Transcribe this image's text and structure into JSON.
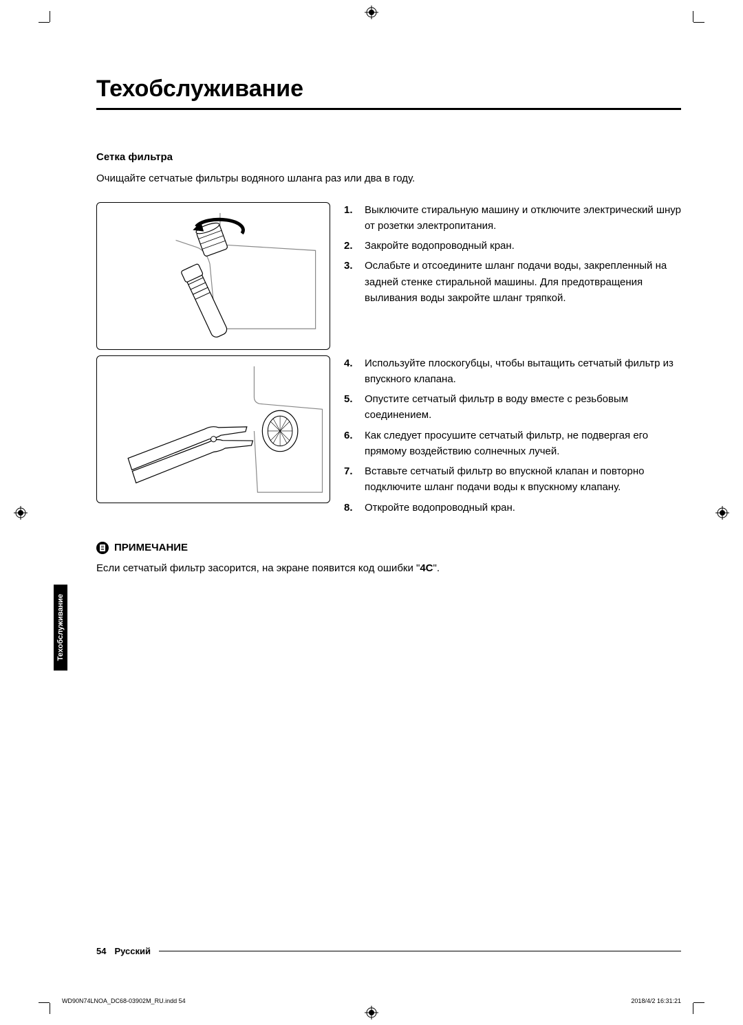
{
  "page": {
    "title": "Техобслуживание",
    "subheading": "Сетка фильтра",
    "intro": "Очищайте сетчатые фильтры водяного шланга раз или два в году.",
    "sideTab": "Техобслуживание",
    "pageNumber": "54",
    "language": "Русский"
  },
  "steps_block1": [
    {
      "num": "1.",
      "text": "Выключите стиральную машину и отключите электрический шнур от розетки электропитания."
    },
    {
      "num": "2.",
      "text": "Закройте водопроводный кран."
    },
    {
      "num": "3.",
      "text": "Ослабьте и отсоедините шланг подачи воды, закрепленный на задней стенке стиральной машины. Для предотвращения выливания воды закройте шланг тряпкой."
    }
  ],
  "steps_block2": [
    {
      "num": "4.",
      "text": "Используйте плоскогубцы, чтобы вытащить сетчатый фильтр из впускного клапана."
    },
    {
      "num": "5.",
      "text": "Опустите сетчатый фильтр в воду вместе с резьбовым соединением."
    },
    {
      "num": "6.",
      "text": "Как следует просушите сетчатый фильтр, не подвергая его прямому воздействию солнечных лучей."
    },
    {
      "num": "7.",
      "text": "Вставьте сетчатый фильтр во впускной клапан и повторно подключите шланг подачи воды к впускному клапану."
    },
    {
      "num": "8.",
      "text": "Откройте водопроводный кран."
    }
  ],
  "note": {
    "title": "ПРИМЕЧАНИЕ",
    "text_before": "Если сетчатый фильтр засорится, на экране появится код ошибки \"",
    "code": "4C",
    "text_after": "\"."
  },
  "meta": {
    "filename": "WD90N74LNOA_DC68-03902M_RU.indd   54",
    "timestamp": "2018/4/2   16:31:21"
  },
  "colors": {
    "text": "#000000",
    "background": "#ffffff",
    "rule": "#000000",
    "tabBg": "#000000",
    "tabText": "#ffffff"
  }
}
